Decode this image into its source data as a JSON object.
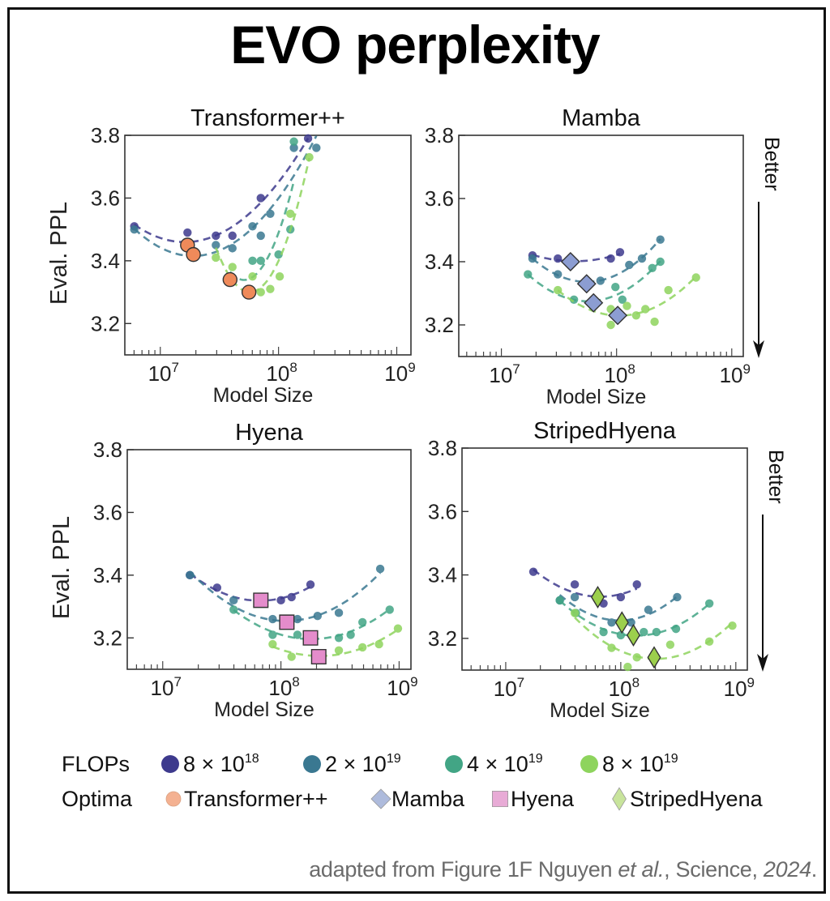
{
  "page": {
    "title": "EVO perplexity",
    "caption": {
      "prefix": "adapted from Figure 1F Nguyen ",
      "etal": "et al.",
      "middle": ", Science, ",
      "year": "2024",
      "suffix": "."
    },
    "better_label": "Better"
  },
  "colors": {
    "flops_8e18": "#3d3a8d",
    "flops_2e19": "#3a7891",
    "flops_4e19": "#42a585",
    "flops_8e19": "#8ed45d",
    "optima_transformer": "#ef8a5a",
    "optima_mamba": "#8c9dd2",
    "optima_hyena": "#e48ccb",
    "optima_striped": "#9ccf4c",
    "legend_transformer": "#f4b191",
    "legend_mamba": "#aebbdc",
    "legend_hyena": "#e8abd6",
    "legend_striped": "#c8e49c"
  },
  "legend": {
    "flops_label": "FLOPs",
    "flops_items": [
      {
        "key": "flops_8e18",
        "mant": "8 × 10",
        "exp": "18"
      },
      {
        "key": "flops_2e19",
        "mant": "2 × 10",
        "exp": "19"
      },
      {
        "key": "flops_4e19",
        "mant": "4 × 10",
        "exp": "19"
      },
      {
        "key": "flops_8e19",
        "mant": "8 × 10",
        "exp": "19"
      }
    ],
    "optima_label": "Optima",
    "optima_items": [
      {
        "key": "legend_transformer",
        "shape": "circle",
        "label": "Transformer++"
      },
      {
        "key": "legend_mamba",
        "shape": "diamond",
        "label": "Mamba"
      },
      {
        "key": "legend_hyena",
        "shape": "square",
        "label": "Hyena"
      },
      {
        "key": "legend_striped",
        "shape": "thin-diamond",
        "label": "StripedHyena"
      }
    ]
  },
  "chart_data": [
    {
      "type": "scatter",
      "title": "Transformer++",
      "xlabel": "Model Size",
      "ylabel": "Eval. PPL",
      "xscale": "log",
      "xlim_log10": [
        6.7,
        9.12
      ],
      "ylim": [
        3.1,
        3.8
      ],
      "xticks": [
        {
          "value": 7,
          "label": "10",
          "exp": "7"
        },
        {
          "value": 8,
          "label": "10",
          "exp": "8"
        },
        {
          "value": 9,
          "label": "10",
          "exp": "9"
        }
      ],
      "yticks": [
        3.2,
        3.4,
        3.6,
        3.8
      ],
      "grid": false,
      "optima_shape": "circle",
      "optima_color": "optima_transformer",
      "series": [
        {
          "name": "8 × 10^18",
          "color": "flops_8e18",
          "x_log10": [
            6.78,
            7.23,
            7.47,
            7.61,
            7.85,
            8.25
          ],
          "y": [
            3.51,
            3.49,
            3.48,
            3.48,
            3.6,
            3.79
          ],
          "optimum": {
            "x_log10": 7.23,
            "y": 3.45
          }
        },
        {
          "name": "2 × 10^19",
          "color": "flops_2e19",
          "x_log10": [
            6.78,
            7.47,
            7.61,
            7.78,
            7.85,
            7.93,
            8.13,
            8.32
          ],
          "y": [
            3.5,
            3.45,
            3.44,
            3.51,
            3.48,
            3.55,
            3.76,
            3.76
          ],
          "optimum": {
            "x_log10": 7.28,
            "y": 3.42
          }
        },
        {
          "name": "4 × 10^19",
          "color": "flops_4e19",
          "x_log10": [
            7.78,
            7.85,
            8.0,
            8.1,
            8.13
          ],
          "y": [
            3.4,
            3.4,
            3.42,
            3.5,
            3.78
          ],
          "optimum": {
            "x_log10": 7.59,
            "y": 3.34
          }
        },
        {
          "name": "8 × 10^19",
          "color": "flops_8e19",
          "x_log10": [
            7.47,
            7.61,
            7.78,
            7.85,
            7.93,
            8.01,
            8.1,
            8.26
          ],
          "y": [
            3.41,
            3.38,
            3.35,
            3.3,
            3.31,
            3.35,
            3.55,
            3.73
          ],
          "optimum": {
            "x_log10": 7.75,
            "y": 3.3
          }
        }
      ]
    },
    {
      "type": "scatter",
      "title": "Mamba",
      "xlabel": "Model Size",
      "ylabel": "",
      "xscale": "log",
      "xlim_log10": [
        6.63,
        9.1
      ],
      "ylim": [
        3.1,
        3.8
      ],
      "xticks": [
        {
          "value": 7,
          "label": "10",
          "exp": "7"
        },
        {
          "value": 8,
          "label": "10",
          "exp": "8"
        },
        {
          "value": 9,
          "label": "10",
          "exp": "9"
        }
      ],
      "yticks": [
        3.2,
        3.4,
        3.6,
        3.8
      ],
      "grid": false,
      "optima_shape": "diamond",
      "optima_color": "optima_mamba",
      "series": [
        {
          "name": "8 × 10^18",
          "color": "flops_8e18",
          "x_log10": [
            7.27,
            7.49,
            7.95,
            8.03
          ],
          "y": [
            3.42,
            3.41,
            3.41,
            3.43
          ],
          "optimum": {
            "x_log10": 7.6,
            "y": 3.4
          }
        },
        {
          "name": "2 × 10^19",
          "color": "flops_2e19",
          "x_log10": [
            7.27,
            7.49,
            7.86,
            8.11,
            8.22,
            8.38
          ],
          "y": [
            3.41,
            3.36,
            3.34,
            3.39,
            3.41,
            3.47
          ],
          "optimum": {
            "x_log10": 7.74,
            "y": 3.33
          }
        },
        {
          "name": "4 × 10^19",
          "color": "flops_4e19",
          "x_log10": [
            7.23,
            7.63,
            7.99,
            8.05,
            8.31,
            8.38
          ],
          "y": [
            3.36,
            3.28,
            3.32,
            3.28,
            3.38,
            3.4
          ],
          "optimum": {
            "x_log10": 7.8,
            "y": 3.27
          }
        },
        {
          "name": "8 × 10^19",
          "color": "flops_8e19",
          "x_log10": [
            7.49,
            7.95,
            7.95,
            8.09,
            8.17,
            8.25,
            8.33,
            8.45,
            8.69
          ],
          "y": [
            3.31,
            3.25,
            3.2,
            3.26,
            3.23,
            3.25,
            3.21,
            3.31,
            3.35
          ],
          "optimum": {
            "x_log10": 8.01,
            "y": 3.23
          }
        }
      ]
    },
    {
      "type": "scatter",
      "title": "Hyena",
      "xlabel": "Model Size",
      "ylabel": "Eval. PPL",
      "xscale": "log",
      "xlim_log10": [
        6.7,
        9.1
      ],
      "ylim": [
        3.1,
        3.8
      ],
      "xticks": [
        {
          "value": 7,
          "label": "10",
          "exp": "7"
        },
        {
          "value": 8,
          "label": "10",
          "exp": "8"
        },
        {
          "value": 9,
          "label": "10",
          "exp": "9"
        }
      ],
      "yticks": [
        3.2,
        3.4,
        3.6,
        3.8
      ],
      "grid": false,
      "optima_shape": "square",
      "optima_color": "optima_hyena",
      "series": [
        {
          "name": "8 × 10^18",
          "color": "flops_8e18",
          "x_log10": [
            7.23,
            7.46,
            8.0,
            8.09,
            8.25
          ],
          "y": [
            3.4,
            3.36,
            3.32,
            3.33,
            3.37
          ],
          "optimum": {
            "x_log10": 7.83,
            "y": 3.32
          }
        },
        {
          "name": "2 × 10^19",
          "color": "flops_2e19",
          "x_log10": [
            7.23,
            7.6,
            7.93,
            8.14,
            8.31,
            8.49,
            8.84
          ],
          "y": [
            3.4,
            3.32,
            3.26,
            3.26,
            3.27,
            3.28,
            3.42
          ],
          "optimum": {
            "x_log10": 8.05,
            "y": 3.25
          }
        },
        {
          "name": "4 × 10^19",
          "color": "flops_4e19",
          "x_log10": [
            7.6,
            7.93,
            8.14,
            8.49,
            8.59,
            8.69,
            8.92
          ],
          "y": [
            3.29,
            3.21,
            3.21,
            3.2,
            3.21,
            3.25,
            3.29
          ],
          "optimum": {
            "x_log10": 8.25,
            "y": 3.2
          }
        },
        {
          "name": "8 × 10^19",
          "color": "flops_8e19",
          "x_log10": [
            7.93,
            8.09,
            8.49,
            8.69,
            8.83,
            8.99
          ],
          "y": [
            3.18,
            3.14,
            3.16,
            3.17,
            3.18,
            3.23
          ],
          "optimum": {
            "x_log10": 8.32,
            "y": 3.14
          }
        }
      ]
    },
    {
      "type": "scatter",
      "title": "StripedHyena",
      "xlabel": "Model Size",
      "ylabel": "",
      "xscale": "log",
      "xlim_log10": [
        6.62,
        9.1
      ],
      "ylim": [
        3.1,
        3.8
      ],
      "xticks": [
        {
          "value": 7,
          "label": "10",
          "exp": "7"
        },
        {
          "value": 8,
          "label": "10",
          "exp": "8"
        },
        {
          "value": 9,
          "label": "10",
          "exp": "9"
        }
      ],
      "yticks": [
        3.2,
        3.4,
        3.6,
        3.8
      ],
      "grid": false,
      "optima_shape": "thin-diamond",
      "optima_color": "optima_striped",
      "series": [
        {
          "name": "8 × 10^18",
          "color": "flops_8e18",
          "x_log10": [
            7.24,
            7.6,
            7.85,
            8.0,
            8.14
          ],
          "y": [
            3.41,
            3.37,
            3.31,
            3.33,
            3.37
          ],
          "optimum": {
            "x_log10": 7.8,
            "y": 3.33
          }
        },
        {
          "name": "2 × 10^19",
          "color": "flops_2e19",
          "x_log10": [
            7.47,
            7.6,
            7.92,
            8.09,
            8.24,
            8.49
          ],
          "y": [
            3.32,
            3.33,
            3.25,
            3.25,
            3.29,
            3.33
          ],
          "optimum": {
            "x_log10": 8.01,
            "y": 3.25
          }
        },
        {
          "name": "4 × 10^19",
          "color": "flops_4e19",
          "x_log10": [
            7.47,
            7.61,
            7.85,
            8.0,
            8.2,
            8.31,
            8.48,
            8.77
          ],
          "y": [
            3.32,
            3.28,
            3.22,
            3.21,
            3.22,
            3.22,
            3.23,
            3.31
          ],
          "optimum": {
            "x_log10": 8.11,
            "y": 3.21
          }
        },
        {
          "name": "8 × 10^19",
          "color": "flops_8e19",
          "x_log10": [
            7.6,
            7.92,
            8.06,
            8.14,
            8.43,
            8.77,
            8.97
          ],
          "y": [
            3.28,
            3.17,
            3.11,
            3.14,
            3.18,
            3.19,
            3.24
          ],
          "optimum": {
            "x_log10": 8.29,
            "y": 3.14
          }
        }
      ]
    }
  ]
}
